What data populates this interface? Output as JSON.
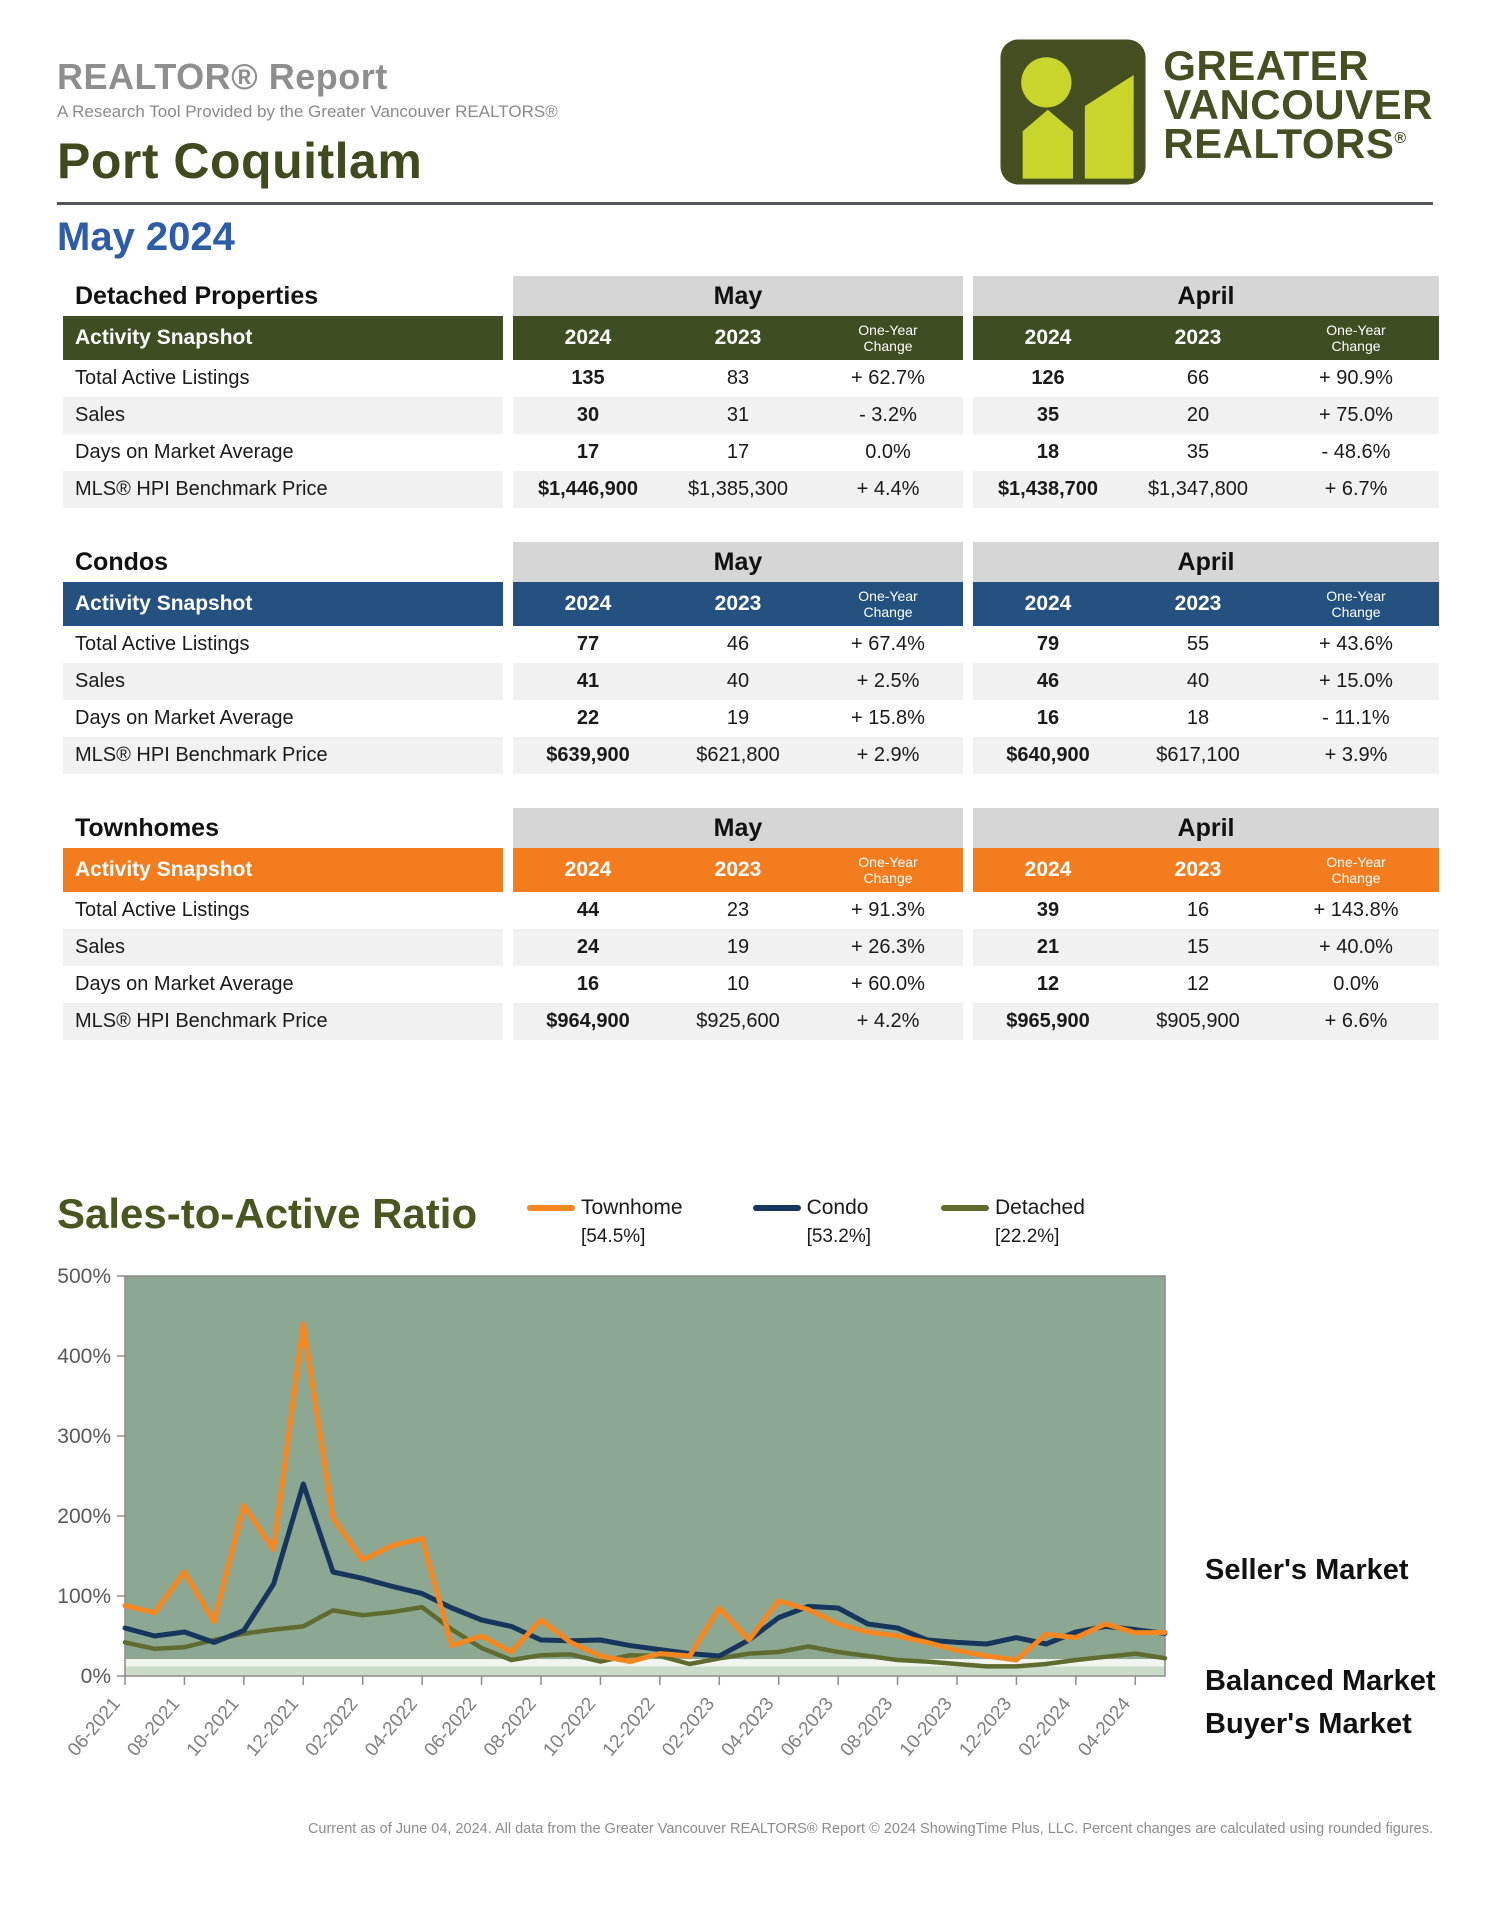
{
  "header": {
    "report_title": "REALTOR® Report",
    "report_subtitle": "A Research Tool Provided by the Greater Vancouver REALTORS®",
    "area_title": "Port Coquitlam",
    "month_title": "May 2024",
    "logo": {
      "lines": [
        "GREATER",
        "VANCOUVER",
        "REALTORS"
      ],
      "registered_mark": "®",
      "box_color": "#454F21",
      "accent_color": "#C8D62B"
    }
  },
  "tables": [
    {
      "section_label": "Detached Properties",
      "slug": "detached-properties",
      "accent_color": "#3F4D22",
      "snapshot_label": "Activity Snapshot",
      "period_headers": [
        "May",
        "April"
      ],
      "col_headers": [
        "2024",
        "2023",
        "One-Year Change"
      ],
      "rows": [
        {
          "label": "Total Active Listings",
          "may": [
            "135",
            "83",
            "+ 62.7%"
          ],
          "april": [
            "126",
            "66",
            "+ 90.9%"
          ]
        },
        {
          "label": "Sales",
          "may": [
            "30",
            "31",
            "- 3.2%"
          ],
          "april": [
            "35",
            "20",
            "+ 75.0%"
          ]
        },
        {
          "label": "Days on Market Average",
          "may": [
            "17",
            "17",
            "0.0%"
          ],
          "april": [
            "18",
            "35",
            "- 48.6%"
          ]
        },
        {
          "label": "MLS® HPI Benchmark Price",
          "may": [
            "$1,446,900",
            "$1,385,300",
            "+ 4.4%"
          ],
          "april": [
            "$1,438,700",
            "$1,347,800",
            "+ 6.7%"
          ]
        }
      ]
    },
    {
      "section_label": "Condos",
      "slug": "condos",
      "accent_color": "#255181",
      "snapshot_label": "Activity Snapshot",
      "period_headers": [
        "May",
        "April"
      ],
      "col_headers": [
        "2024",
        "2023",
        "One-Year Change"
      ],
      "rows": [
        {
          "label": "Total Active Listings",
          "may": [
            "77",
            "46",
            "+ 67.4%"
          ],
          "april": [
            "79",
            "55",
            "+ 43.6%"
          ]
        },
        {
          "label": "Sales",
          "may": [
            "41",
            "40",
            "+ 2.5%"
          ],
          "april": [
            "46",
            "40",
            "+ 15.0%"
          ]
        },
        {
          "label": "Days on Market Average",
          "may": [
            "22",
            "19",
            "+ 15.8%"
          ],
          "april": [
            "16",
            "18",
            "- 11.1%"
          ]
        },
        {
          "label": "MLS® HPI Benchmark Price",
          "may": [
            "$639,900",
            "$621,800",
            "+ 2.9%"
          ],
          "april": [
            "$640,900",
            "$617,100",
            "+ 3.9%"
          ]
        }
      ]
    },
    {
      "section_label": "Townhomes",
      "slug": "townhomes",
      "accent_color": "#F37C1F",
      "snapshot_label": "Activity Snapshot",
      "period_headers": [
        "May",
        "April"
      ],
      "col_headers": [
        "2024",
        "2023",
        "One-Year Change"
      ],
      "rows": [
        {
          "label": "Total Active Listings",
          "may": [
            "44",
            "23",
            "+ 91.3%"
          ],
          "april": [
            "39",
            "16",
            "+ 143.8%"
          ]
        },
        {
          "label": "Sales",
          "may": [
            "24",
            "19",
            "+ 26.3%"
          ],
          "april": [
            "21",
            "15",
            "+ 40.0%"
          ]
        },
        {
          "label": "Days on Market Average",
          "may": [
            "16",
            "10",
            "+ 60.0%"
          ],
          "april": [
            "12",
            "12",
            "0.0%"
          ]
        },
        {
          "label": "MLS® HPI Benchmark Price",
          "may": [
            "$964,900",
            "$925,600",
            "+ 4.2%"
          ],
          "april": [
            "$965,900",
            "$905,900",
            "+ 6.6%"
          ]
        }
      ]
    }
  ],
  "chart": {
    "title": "Sales-to-Active Ratio",
    "legend": [
      {
        "label": "Townhome",
        "current_value": "[54.5%]",
        "color": "#F6861F"
      },
      {
        "label": "Condo",
        "current_value": "[53.2%]",
        "color": "#17365D"
      },
      {
        "label": "Detached",
        "current_value": "[22.2%]",
        "color": "#5F6B2F"
      }
    ],
    "market_labels": [
      "Seller's Market",
      "Balanced Market",
      "Buyer's Market"
    ]
  },
  "chart_data": {
    "type": "line",
    "title": "Sales-to-Active Ratio",
    "x": [
      "06-2021",
      "07-2021",
      "08-2021",
      "09-2021",
      "10-2021",
      "11-2021",
      "12-2021",
      "01-2022",
      "02-2022",
      "03-2022",
      "04-2022",
      "05-2022",
      "06-2022",
      "07-2022",
      "08-2022",
      "09-2022",
      "10-2022",
      "11-2022",
      "12-2022",
      "01-2023",
      "02-2023",
      "03-2023",
      "04-2023",
      "05-2023",
      "06-2023",
      "07-2023",
      "08-2023",
      "09-2023",
      "10-2023",
      "11-2023",
      "12-2023",
      "01-2024",
      "02-2024",
      "03-2024",
      "04-2024",
      "05-2024"
    ],
    "x_tick_labels": [
      "06-2021",
      "08-2021",
      "10-2021",
      "12-2021",
      "02-2022",
      "04-2022",
      "06-2022",
      "08-2022",
      "10-2022",
      "12-2022",
      "02-2023",
      "04-2023",
      "06-2023",
      "08-2023",
      "10-2023",
      "12-2023",
      "02-2024",
      "04-2024"
    ],
    "series": [
      {
        "name": "Townhome",
        "color": "#F6861F",
        "values": [
          88,
          79,
          130,
          68,
          213,
          158,
          440,
          198,
          145,
          163,
          172,
          38,
          50,
          30,
          70,
          42,
          25,
          18,
          28,
          25,
          85,
          45,
          94,
          83,
          65,
          55,
          50,
          42,
          32,
          25,
          20,
          52,
          48,
          65,
          54,
          54.5
        ]
      },
      {
        "name": "Condo",
        "color": "#17365D",
        "values": [
          60,
          50,
          55,
          42,
          57,
          115,
          240,
          130,
          122,
          112,
          103,
          85,
          70,
          62,
          45,
          44,
          45,
          38,
          33,
          28,
          25,
          45,
          73,
          87,
          85,
          65,
          60,
          45,
          42,
          40,
          48,
          40,
          55,
          62,
          58,
          53.2
        ]
      },
      {
        "name": "Detached",
        "color": "#5F6B2F",
        "values": [
          42,
          34,
          36,
          45,
          53,
          58,
          62,
          82,
          76,
          80,
          86,
          58,
          35,
          20,
          26,
          27,
          18,
          26,
          25,
          15,
          22,
          28,
          30,
          37,
          30,
          25,
          20,
          18,
          15,
          12,
          12,
          15,
          20,
          24,
          28,
          22.2
        ]
      }
    ],
    "ylim": [
      0,
      500
    ],
    "y_ticks": [
      "0%",
      "100%",
      "200%",
      "300%",
      "400%",
      "500%"
    ],
    "bands": [
      {
        "label": "Seller's Market",
        "from": 21,
        "to": 500,
        "color": "#8CA893"
      },
      {
        "label": "Balanced Market",
        "from": 12,
        "to": 21,
        "color": "#F1F4EF"
      },
      {
        "label": "Buyer's Market",
        "from": 0,
        "to": 12,
        "color": "#CBDCCB"
      }
    ],
    "grid": false,
    "legend_position": "top"
  },
  "footer": {
    "note": "Current as of June 04, 2024. All data from the Greater Vancouver REALTORS® Report © 2024 ShowingTime Plus, LLC. Percent changes are calculated using rounded figures."
  }
}
